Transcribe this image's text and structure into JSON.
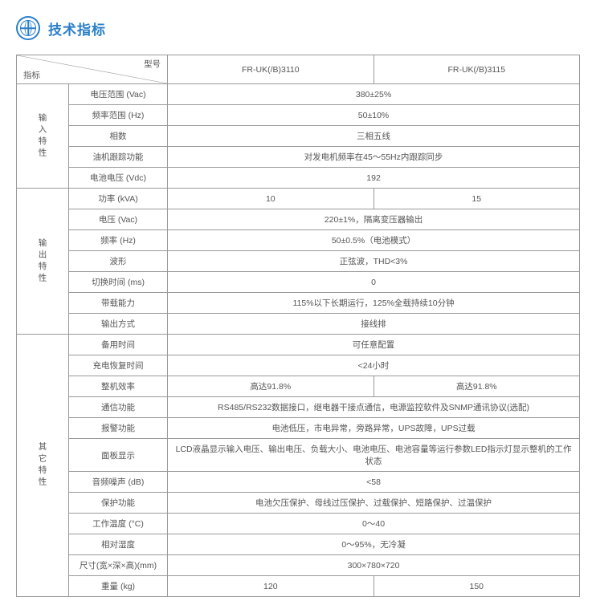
{
  "header": {
    "title": "技术指标"
  },
  "table": {
    "head": {
      "metric": "指标",
      "model": "型号",
      "m1": "FR-UK(/B)3110",
      "m2": "FR-UK(/B)3115"
    },
    "sections": {
      "input": {
        "label": "输入特性",
        "rows": [
          {
            "param": "电压范围 (Vac)",
            "span": true,
            "val": "380±25%"
          },
          {
            "param": "频率范围 (Hz)",
            "span": true,
            "val": "50±10%"
          },
          {
            "param": "相数",
            "span": true,
            "val": "三相五线"
          },
          {
            "param": "油机跟踪功能",
            "span": true,
            "val": "对发电机频率在45～55Hz内跟踪同步"
          },
          {
            "param": "电池电压 (Vdc)",
            "span": true,
            "val": "192"
          }
        ]
      },
      "output": {
        "label": "输出特性",
        "rows": [
          {
            "param": "功率 (kVA)",
            "span": false,
            "v1": "10",
            "v2": "15"
          },
          {
            "param": "电压 (Vac)",
            "span": true,
            "val": "220±1%，隔离变压器输出"
          },
          {
            "param": "频率 (Hz)",
            "span": true,
            "val": "50±0.5%（电池模式）"
          },
          {
            "param": "波形",
            "span": true,
            "val": "正弦波，THD<3%"
          },
          {
            "param": "切换时间 (ms)",
            "span": true,
            "val": "0"
          },
          {
            "param": "带载能力",
            "span": true,
            "val": "115%以下长期运行，125%全载持续10分钟"
          },
          {
            "param": "输出方式",
            "span": true,
            "val": "接线排"
          }
        ]
      },
      "other": {
        "label": "其它特性",
        "rows": [
          {
            "param": "备用时间",
            "span": true,
            "val": "可任意配置"
          },
          {
            "param": "充电恢复时间",
            "span": true,
            "val": "<24小时"
          },
          {
            "param": "整机效率",
            "span": false,
            "v1": "高达91.8%",
            "v2": "高达91.8%"
          },
          {
            "param": "通信功能",
            "span": true,
            "val": "RS485/RS232数据接口，继电器干接点通信，电源监控软件及SNMP通讯协议(选配)"
          },
          {
            "param": "报警功能",
            "span": true,
            "val": "电池低压，市电异常，旁路异常，UPS故障，UPS过载"
          },
          {
            "param": "面板显示",
            "span": true,
            "val": "LCD液晶显示输入电压、输出电压、负载大小、电池电压、电池容量等运行参数LED指示灯显示整机的工作状态"
          },
          {
            "param": "音频噪声 (dB)",
            "span": true,
            "val": "<58"
          },
          {
            "param": "保护功能",
            "span": true,
            "val": "电池欠压保护、母线过压保护、过载保护、短路保护、过温保护"
          },
          {
            "param": "工作温度 (°C)",
            "span": true,
            "val": "0～40"
          },
          {
            "param": "相对湿度",
            "span": true,
            "val": "0～95%，无冷凝"
          },
          {
            "param": "尺寸(宽×深×高)(mm)",
            "span": true,
            "val": "300×780×720"
          },
          {
            "param": "重量 (kg)",
            "span": false,
            "v1": "120",
            "v2": "150"
          }
        ]
      }
    }
  }
}
